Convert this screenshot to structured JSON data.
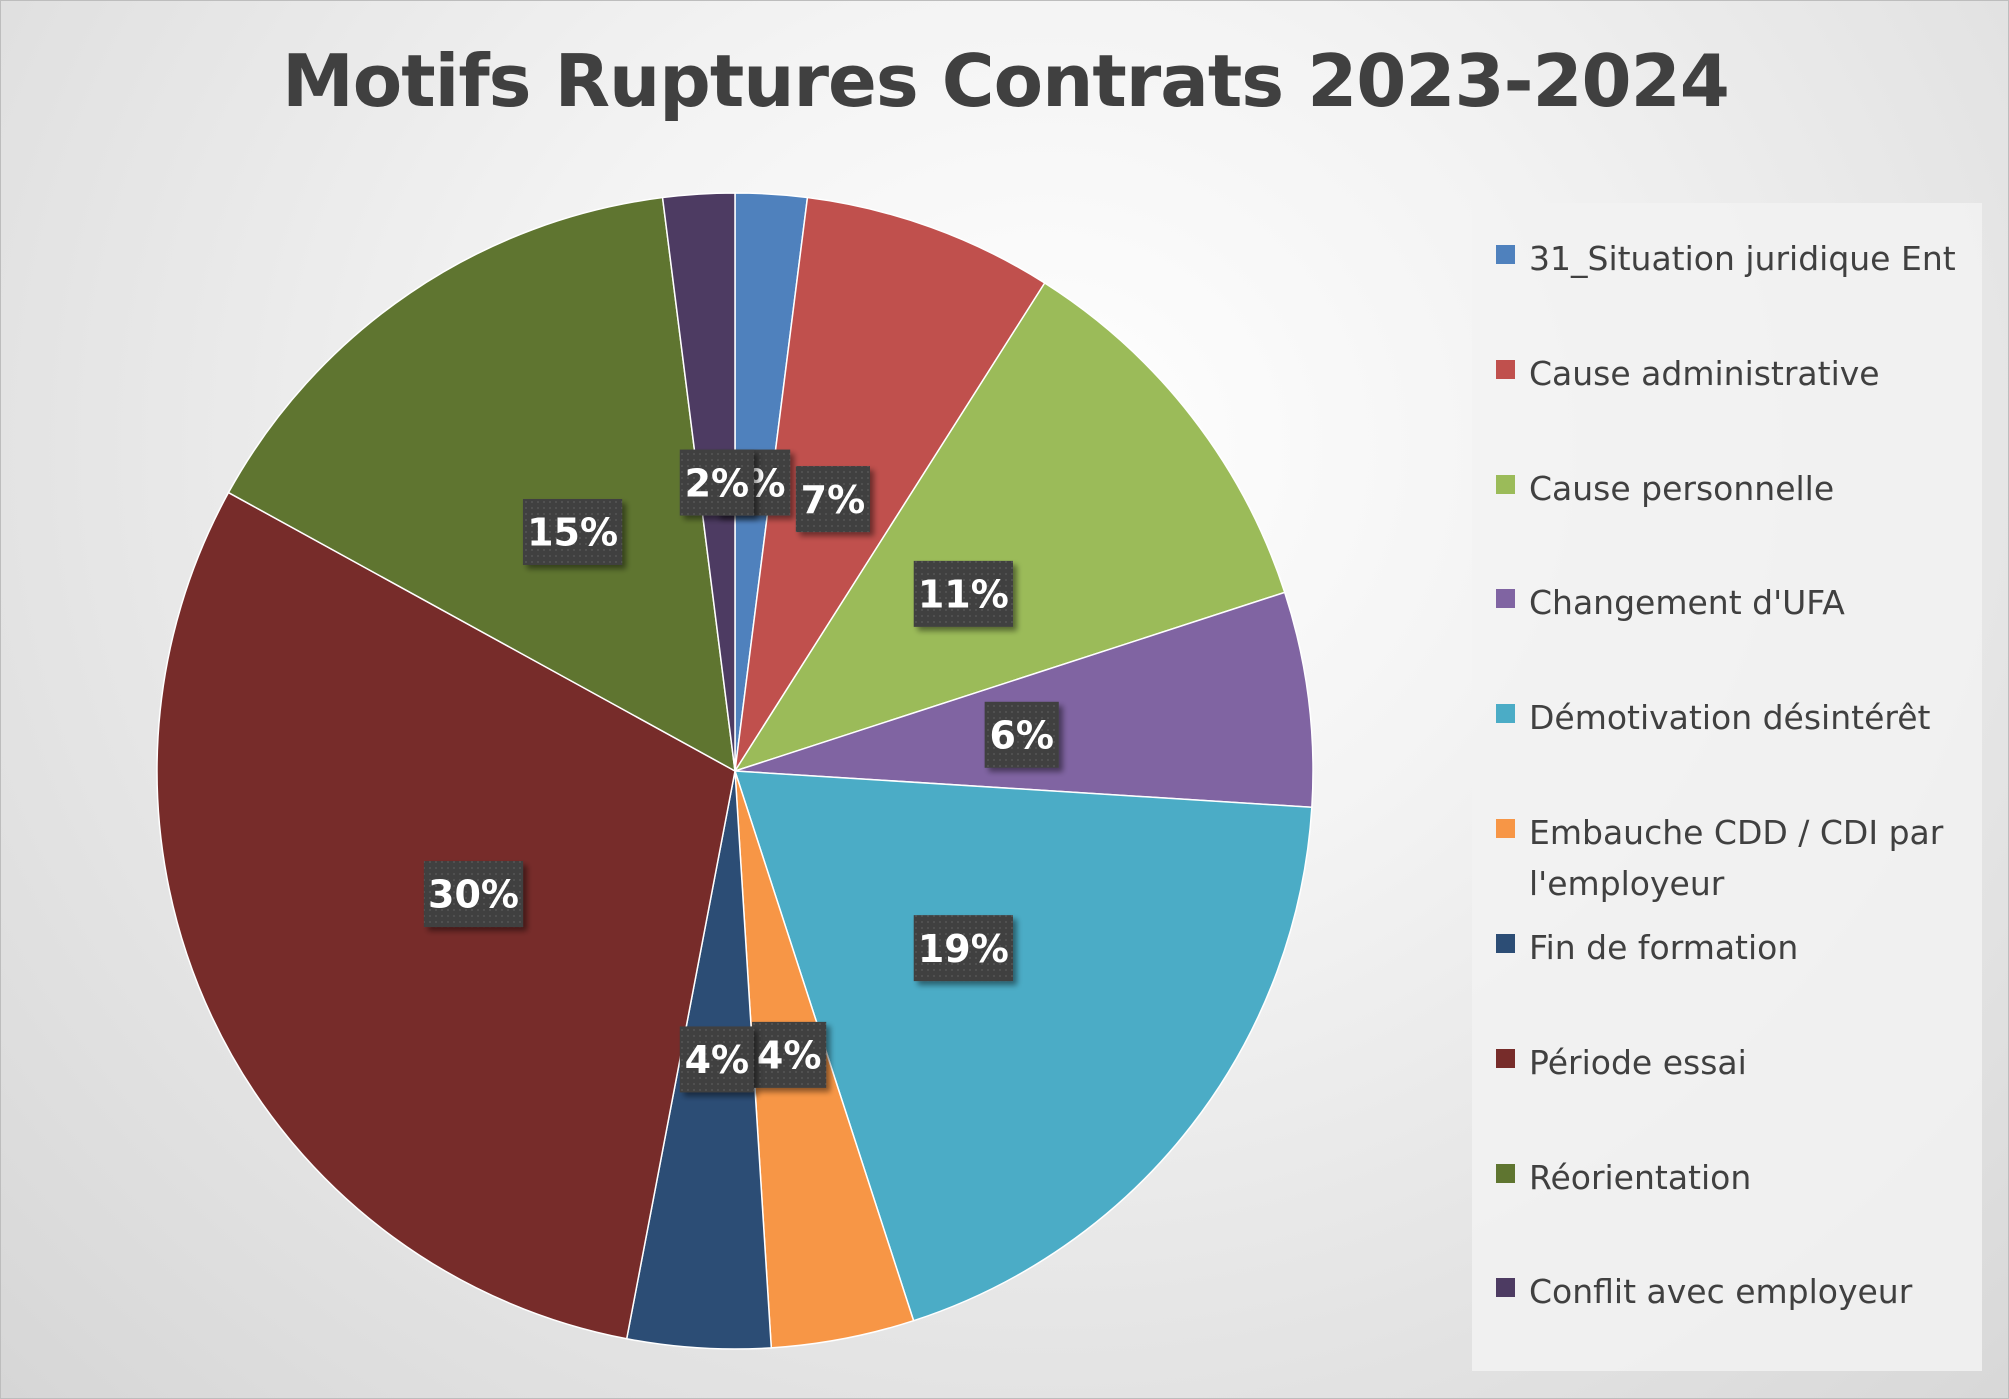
{
  "chart_data": {
    "type": "pie",
    "title": "Motifs Ruptures Contrats 2023-2024",
    "legend_position": "right",
    "slices": [
      {
        "label": "31_Situation juridique Ent",
        "value": 2,
        "data_label": "2%",
        "color": "#4F81BD"
      },
      {
        "label": "Cause administrative",
        "value": 7,
        "data_label": "7%",
        "color": "#C0504D"
      },
      {
        "label": "Cause personnelle",
        "value": 11,
        "data_label": "11%",
        "color": "#9BBB59"
      },
      {
        "label": "Changement d'UFA",
        "value": 6,
        "data_label": "6%",
        "color": "#8064A2"
      },
      {
        "label": "Démotivation désintérêt",
        "value": 19,
        "data_label": "19%",
        "color": "#4BACC6"
      },
      {
        "label": "Embauche CDD / CDI par l'employeur",
        "value": 4,
        "data_label": "4%",
        "color": "#F79646"
      },
      {
        "label": "Fin de formation",
        "value": 4,
        "data_label": "4%",
        "color": "#2C4D75"
      },
      {
        "label": "Période essai",
        "value": 30,
        "data_label": "30%",
        "color": "#772C2A"
      },
      {
        "label": "Réorientation",
        "value": 15,
        "data_label": "15%",
        "color": "#5F7530"
      },
      {
        "label": "Conflit avec employeur",
        "value": 2,
        "data_label": "2%",
        "color": "#4D3B62"
      }
    ]
  }
}
